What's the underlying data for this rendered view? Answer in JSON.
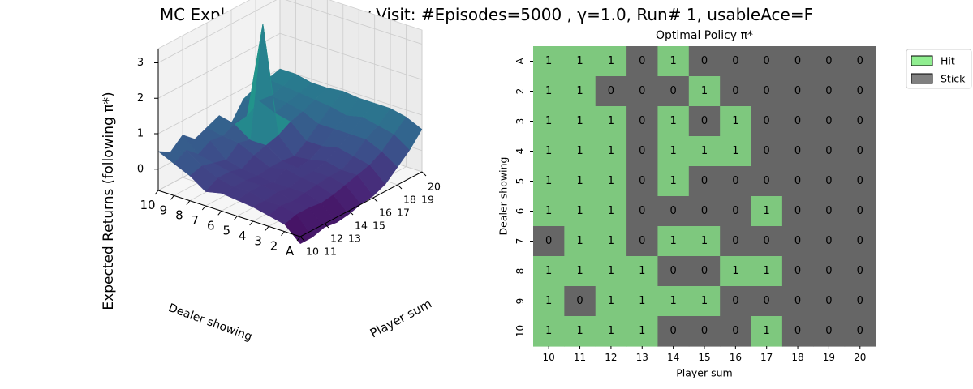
{
  "suptitle": "MC Exploring Starts Every-Visit: #Episodes=5000 , γ=1.0, Run# 1, usableAce=F",
  "colors": {
    "hit": "#7ec87e",
    "stick": "#666666",
    "legend_hit": "#90ee90",
    "legend_stick": "#808080"
  },
  "chart_data": [
    {
      "type": "surface",
      "title": "",
      "zlabel": "Expected Returns (following π*)",
      "xlabel": "Player sum",
      "ylabel": "Dealer showing",
      "x": [
        10,
        11,
        12,
        13,
        14,
        15,
        16,
        17,
        18,
        19,
        20
      ],
      "y": [
        "A",
        "2",
        "3",
        "4",
        "5",
        "6",
        "7",
        "8",
        "9",
        "10"
      ],
      "x_tick_labels": [
        "10",
        "12",
        "14",
        "16",
        "18",
        "20"
      ],
      "x_minor_tick_labels": [
        "11",
        "13",
        "15",
        "17",
        "19"
      ],
      "y_tick_labels": [
        "A",
        "2",
        "3",
        "4",
        "5",
        "6",
        "7",
        "8",
        "9",
        "10"
      ],
      "z_ticks": [
        "0",
        "1",
        "2",
        "3"
      ],
      "zlim": [
        -0.6,
        3.4
      ],
      "z": [
        [
          -0.8,
          -0.8,
          -0.7,
          -0.75,
          -0.7,
          -0.6,
          -0.55,
          -0.4,
          -0.1,
          0.2,
          0.6
        ],
        [
          -0.4,
          -0.3,
          -0.3,
          -0.35,
          -0.3,
          -0.2,
          -0.1,
          0.0,
          0.2,
          0.5,
          0.8
        ],
        [
          -0.3,
          -0.2,
          -0.25,
          -0.2,
          -0.15,
          -0.1,
          -0.1,
          0.1,
          0.4,
          0.6,
          0.9
        ],
        [
          -0.2,
          -0.2,
          -0.15,
          -0.2,
          -0.1,
          -0.1,
          0.0,
          0.2,
          0.4,
          0.7,
          0.9
        ],
        [
          -0.15,
          -0.1,
          -0.1,
          -0.2,
          0.0,
          -0.15,
          -0.1,
          0.1,
          0.4,
          0.6,
          0.9
        ],
        [
          -0.1,
          -0.1,
          -0.1,
          -0.15,
          -0.1,
          -0.1,
          -0.15,
          0.1,
          0.4,
          0.7,
          0.95
        ],
        [
          -0.2,
          0.0,
          0.0,
          -0.1,
          0.1,
          0.2,
          0.3,
          0.5,
          0.6,
          0.75,
          0.9
        ],
        [
          0.1,
          0.2,
          0.1,
          0.0,
          0.3,
          0.2,
          3.3,
          0.6,
          0.7,
          0.8,
          0.9
        ],
        [
          0.3,
          0.5,
          0.2,
          0.4,
          0.35,
          0.5,
          0.55,
          0.8,
          0.75,
          0.85,
          1.0
        ],
        [
          0.5,
          0.3,
          0.6,
          0.3,
          0.45,
          0.6,
          0.2,
          0.7,
          0.85,
          0.9,
          1.0
        ]
      ]
    },
    {
      "type": "heatmap",
      "title": "Optimal Policy π*",
      "xlabel": "Player sum",
      "ylabel": "Dealer showing",
      "x": [
        "10",
        "11",
        "12",
        "13",
        "14",
        "15",
        "16",
        "17",
        "18",
        "19",
        "20"
      ],
      "y": [
        "A",
        "2",
        "3",
        "4",
        "5",
        "6",
        "7",
        "8",
        "9",
        "10"
      ],
      "values": [
        [
          1,
          1,
          1,
          0,
          1,
          0,
          0,
          0,
          0,
          0,
          0
        ],
        [
          1,
          1,
          0,
          0,
          0,
          1,
          0,
          0,
          0,
          0,
          0
        ],
        [
          1,
          1,
          1,
          0,
          1,
          0,
          1,
          0,
          0,
          0,
          0
        ],
        [
          1,
          1,
          1,
          0,
          1,
          1,
          1,
          0,
          0,
          0,
          0
        ],
        [
          1,
          1,
          1,
          0,
          1,
          0,
          0,
          0,
          0,
          0,
          0
        ],
        [
          1,
          1,
          1,
          0,
          0,
          0,
          0,
          1,
          0,
          0,
          0
        ],
        [
          0,
          1,
          1,
          0,
          1,
          1,
          0,
          0,
          0,
          0,
          0
        ],
        [
          1,
          1,
          1,
          1,
          0,
          0,
          1,
          1,
          0,
          0,
          0
        ],
        [
          1,
          0,
          1,
          1,
          1,
          1,
          0,
          0,
          0,
          0,
          0
        ],
        [
          1,
          1,
          1,
          1,
          0,
          0,
          0,
          1,
          0,
          0,
          0
        ]
      ],
      "legend": {
        "placement": "upper-right-outside",
        "entries": [
          "Hit",
          "Stick"
        ]
      }
    }
  ]
}
